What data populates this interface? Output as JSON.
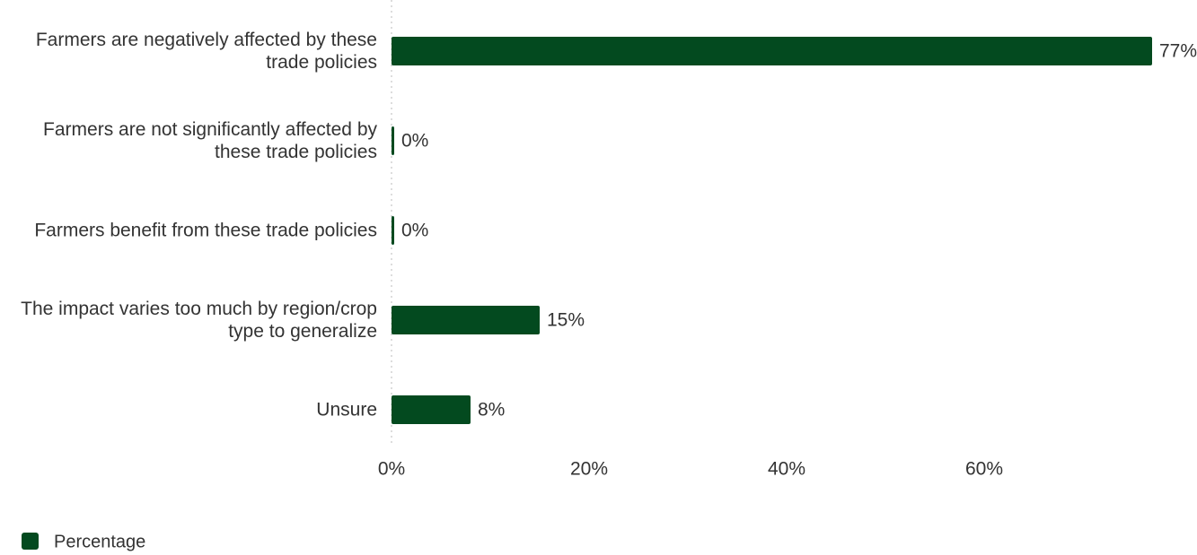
{
  "chart_data": {
    "type": "bar",
    "orientation": "horizontal",
    "categories": [
      "Farmers are negatively affected by these trade policies",
      "Farmers are not significantly affected by these trade policies",
      "Farmers benefit from these trade policies",
      "The impact varies too much by region/crop type to generalize",
      "Unsure"
    ],
    "series": [
      {
        "name": "Percentage",
        "color": "#034a1f",
        "values": [
          77,
          0,
          0,
          15,
          8
        ],
        "value_labels": [
          "77%",
          "0%",
          "0%",
          "15%",
          "8%"
        ]
      }
    ],
    "xlim": [
      0,
      80
    ],
    "xticks": [
      {
        "value": 0,
        "label": "0%"
      },
      {
        "value": 20,
        "label": "20%"
      },
      {
        "value": 40,
        "label": "40%"
      },
      {
        "value": 60,
        "label": "60%"
      }
    ],
    "legend": "bottom-left"
  }
}
